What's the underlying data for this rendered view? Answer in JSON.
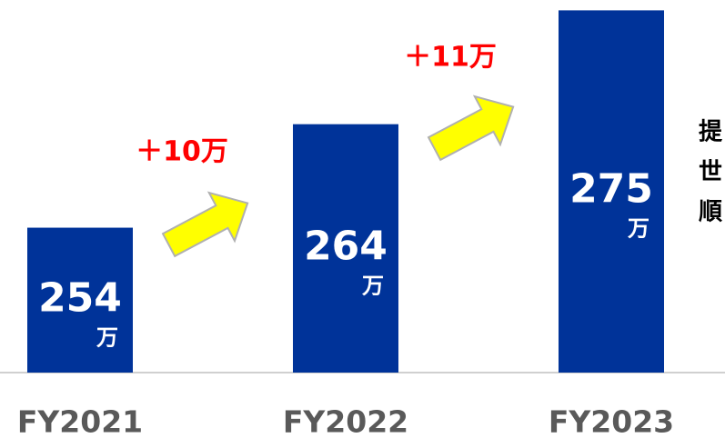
{
  "chart_data": {
    "type": "bar",
    "categories": [
      "FY2021",
      "FY2022",
      "FY2023"
    ],
    "values": [
      254,
      264,
      275
    ],
    "unit": "万",
    "color": "#003399",
    "ylim": [
      240,
      276
    ],
    "annotations": [
      "＋10万",
      "＋11万"
    ],
    "side_text": [
      "提",
      "世",
      "順"
    ]
  }
}
